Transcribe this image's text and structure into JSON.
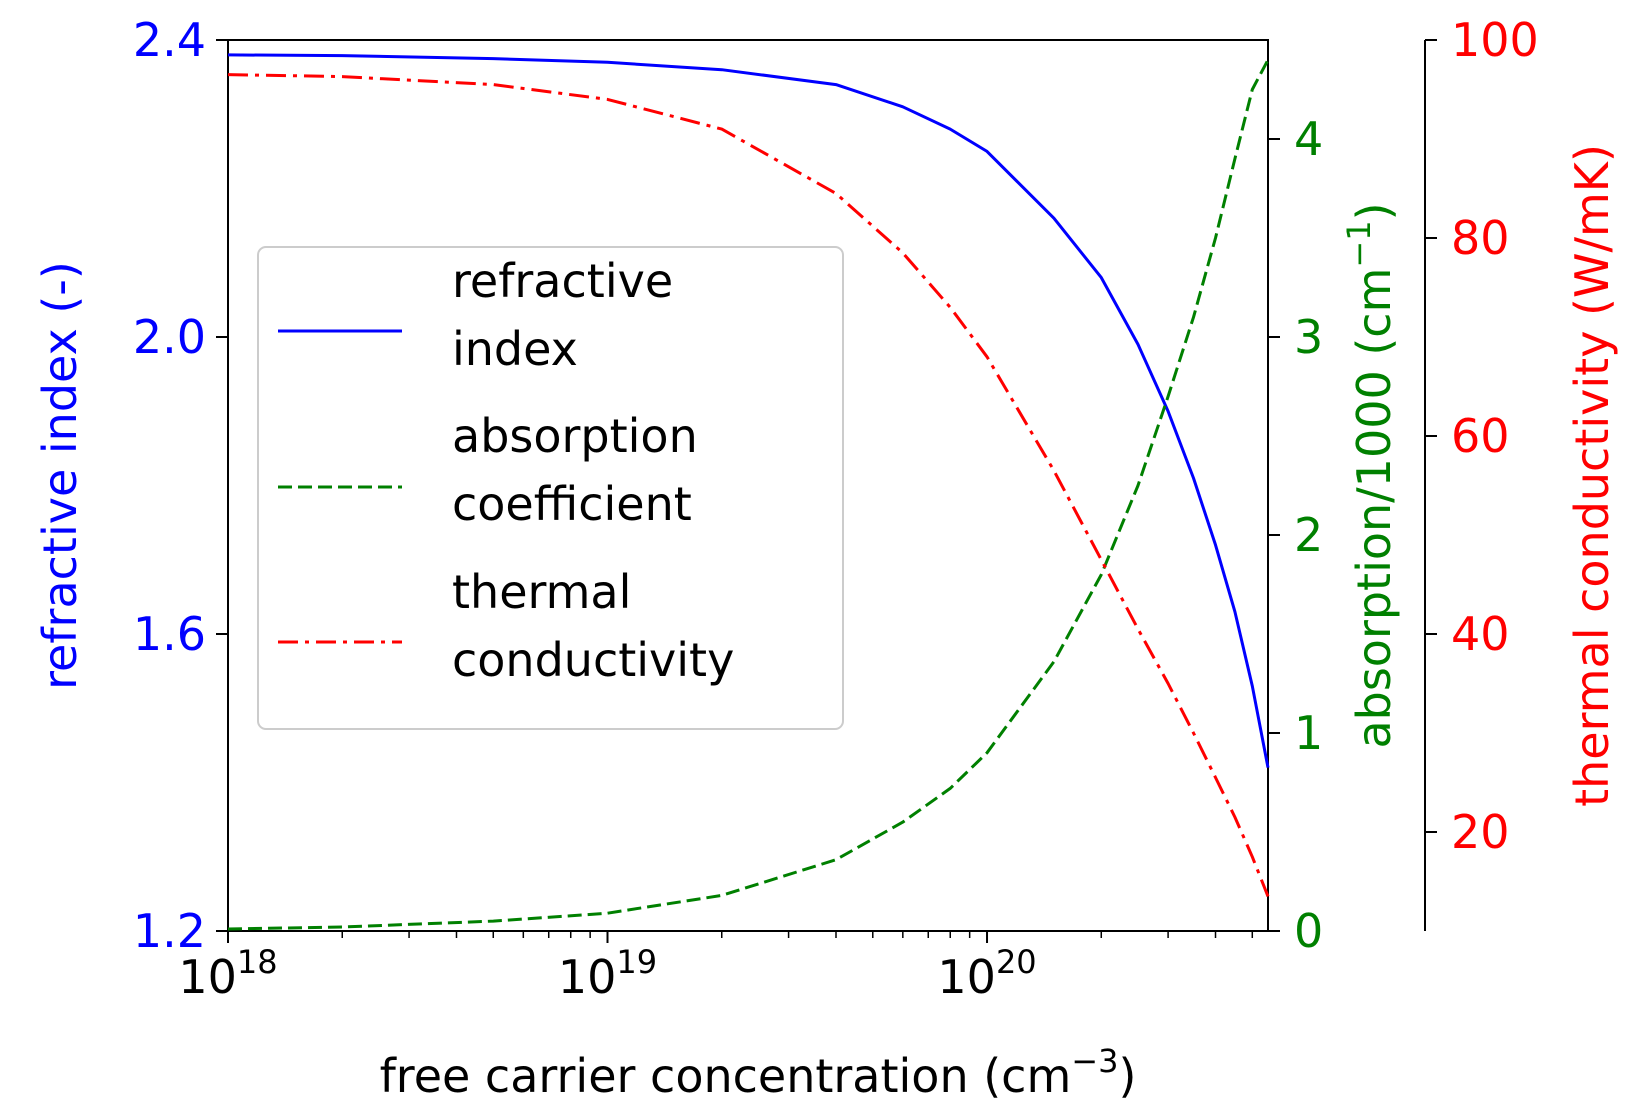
{
  "chart_data": {
    "type": "line",
    "xlabel": {
      "main": "free carrier concentration (cm",
      "sup": "−3",
      "tail": ")"
    },
    "xscale": "log",
    "xlim": [
      1e+18,
      5.5e+20
    ],
    "xticks": [
      {
        "value": 1e+18,
        "base": "10",
        "exp": "18"
      },
      {
        "value": 1e+19,
        "base": "10",
        "exp": "19"
      },
      {
        "value": 1e+20,
        "base": "10",
        "exp": "20"
      }
    ],
    "axes": {
      "left": {
        "label": "refractive index (-)",
        "color": "#0000ff",
        "ylim": [
          1.2,
          2.4
        ],
        "ticks": [
          "1.2",
          "1.6",
          "2.0",
          "2.4"
        ]
      },
      "right1": {
        "label": {
          "main": "absorption/1000 (cm",
          "sup": "−1",
          "tail": ")"
        },
        "color": "#008000",
        "ylim": [
          0,
          4.5
        ],
        "ticks": [
          "0",
          "1",
          "2",
          "3",
          "4"
        ]
      },
      "right2": {
        "label": "thermal conductivity (W/mK)",
        "color": "#ff0000",
        "ylim": [
          10,
          100
        ],
        "ticks": [
          "20",
          "40",
          "60",
          "80",
          "100"
        ]
      }
    },
    "series": [
      {
        "name": "refractive index",
        "axis": "left",
        "color": "#0000ff",
        "dash": "solid",
        "x": [
          1e+18,
          2e+18,
          5e+18,
          1e+19,
          2e+19,
          4e+19,
          6e+19,
          8e+19,
          1e+20,
          1.5e+20,
          2e+20,
          2.5e+20,
          3e+20,
          3.5e+20,
          4e+20,
          4.5e+20,
          5e+20,
          5.5e+20
        ],
        "y": [
          2.38,
          2.379,
          2.375,
          2.37,
          2.36,
          2.34,
          2.31,
          2.28,
          2.25,
          2.16,
          2.08,
          1.99,
          1.9,
          1.81,
          1.72,
          1.63,
          1.53,
          1.42
        ]
      },
      {
        "name": "absorption coefficient",
        "axis": "right1",
        "color": "#008000",
        "dash": "dashed",
        "x": [
          1e+18,
          2e+18,
          5e+18,
          1e+19,
          2e+19,
          4e+19,
          6e+19,
          8e+19,
          1e+20,
          1.5e+20,
          2e+20,
          2.5e+20,
          3e+20,
          3.5e+20,
          4e+20,
          4.5e+20,
          5e+20,
          5.5e+20
        ],
        "y": [
          0.01,
          0.02,
          0.05,
          0.09,
          0.18,
          0.36,
          0.55,
          0.72,
          0.9,
          1.36,
          1.8,
          2.25,
          2.7,
          3.1,
          3.5,
          3.9,
          4.25,
          4.4
        ]
      },
      {
        "name": "thermal conductivity",
        "axis": "right2",
        "color": "#ff0000",
        "dash": "dashdot",
        "x": [
          1e+18,
          2e+18,
          5e+18,
          1e+19,
          2e+19,
          4e+19,
          6e+19,
          8e+19,
          1e+20,
          1.5e+20,
          2e+20,
          2.5e+20,
          3e+20,
          3.5e+20,
          4e+20,
          4.5e+20,
          5e+20,
          5.5e+20
        ],
        "y": [
          96.5,
          96.3,
          95.5,
          94,
          91,
          84.5,
          78.5,
          73,
          68,
          56.5,
          47.5,
          40.5,
          35,
          30,
          25.5,
          21.5,
          17.5,
          13.5
        ]
      }
    ],
    "legend": {
      "position": "center-left",
      "entries": [
        {
          "line1": "refractive",
          "line2": "index"
        },
        {
          "line1": "absorption",
          "line2": "coefficient"
        },
        {
          "line1": "thermal",
          "line2": "conductivity"
        }
      ]
    }
  }
}
